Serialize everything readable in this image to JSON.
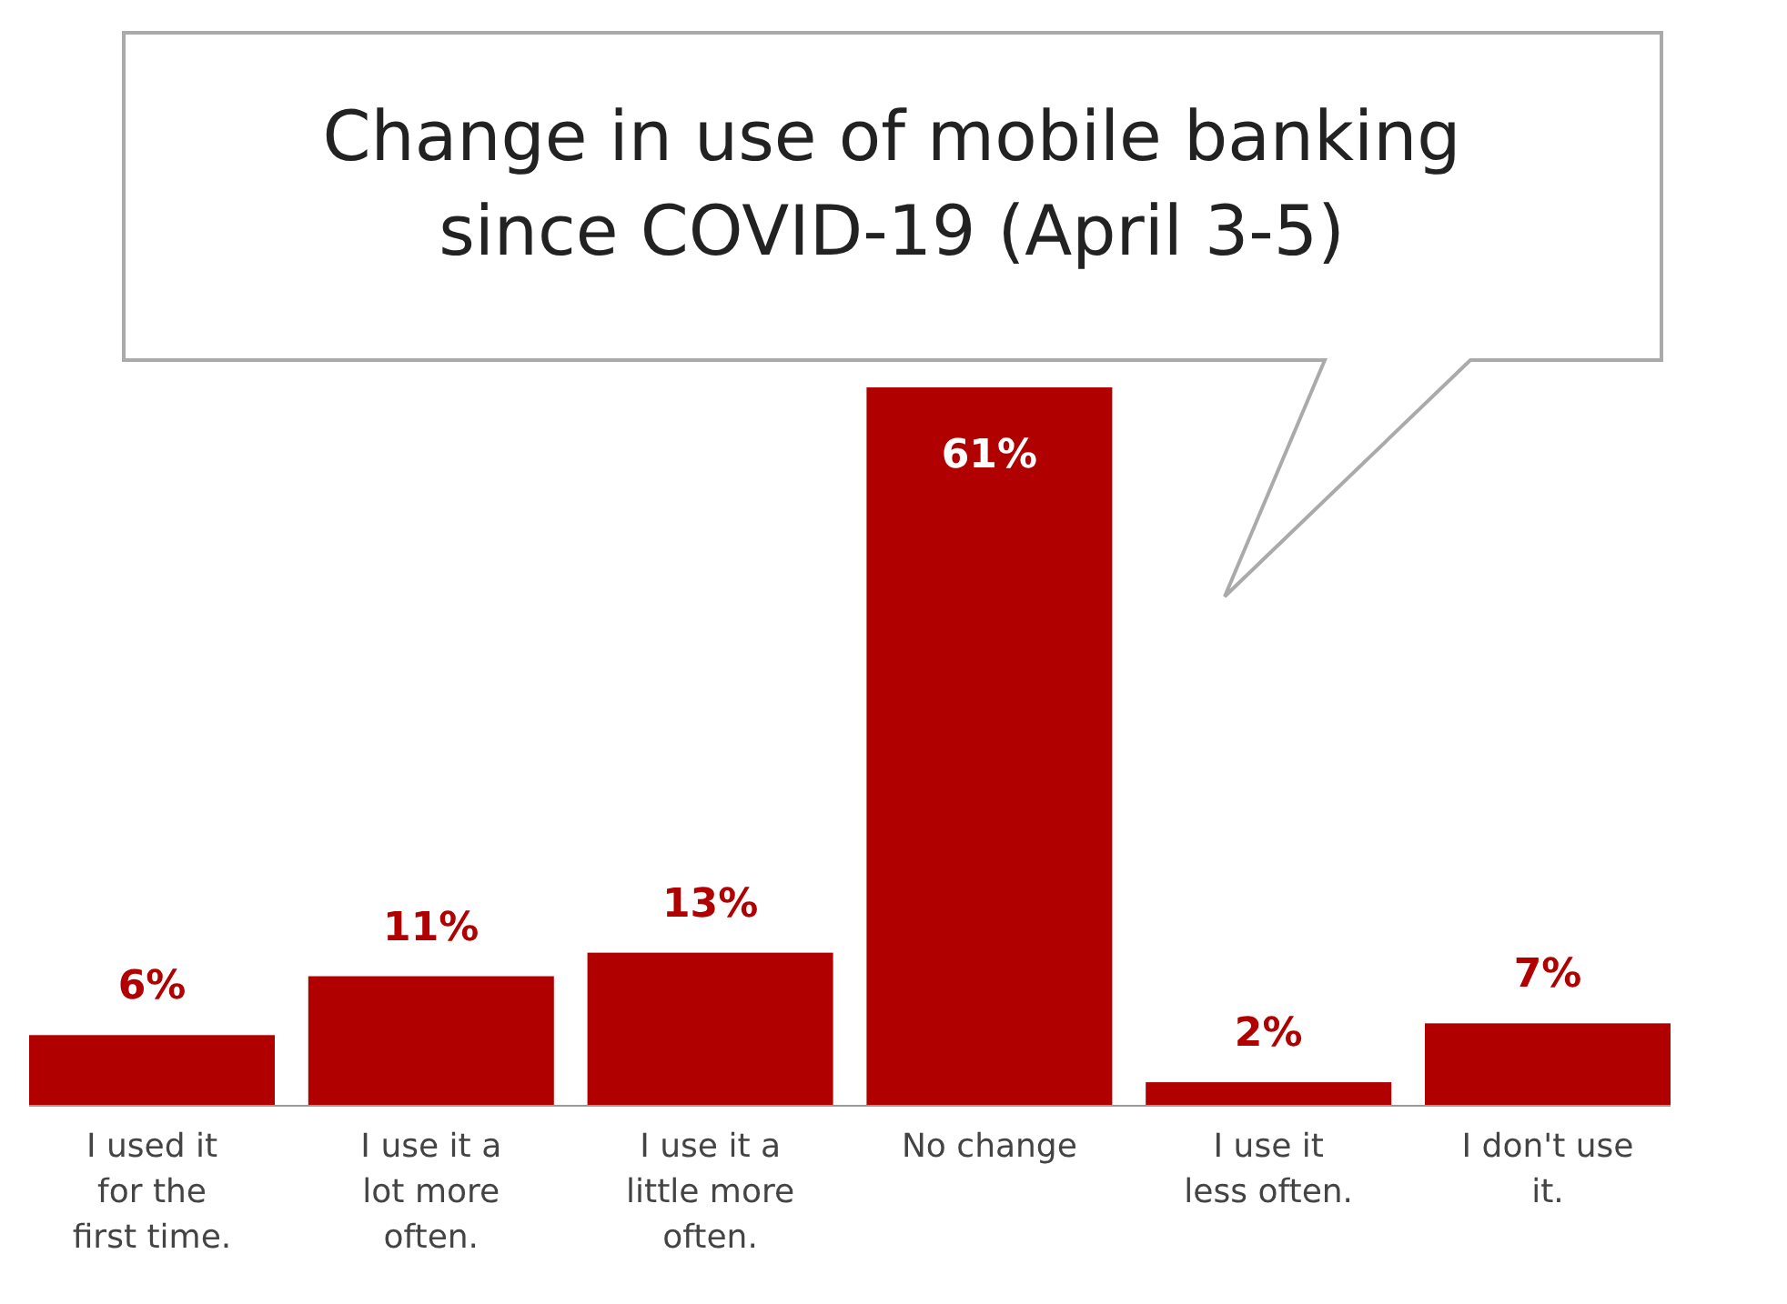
{
  "chart_data": {
    "type": "bar",
    "title": "Change in use of mobile banking since COVID-19 (April 3-5)",
    "categories": [
      "I used it for the first time.",
      "I use it a lot more often.",
      "I use it a little more often.",
      "No change",
      "I use it less often.",
      "I don't use it."
    ],
    "values": [
      6,
      11,
      13,
      61,
      2,
      7
    ],
    "color": "#b00000",
    "value_labels": [
      "6%",
      "11%",
      "13%",
      "61%",
      "2%",
      "7%"
    ]
  }
}
